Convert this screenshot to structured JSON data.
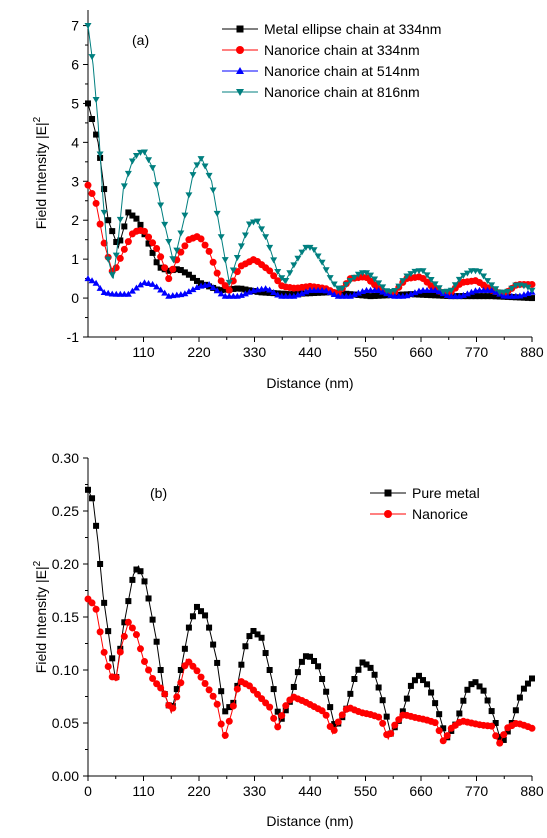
{
  "chart_data": [
    {
      "type": "line",
      "panel_label": "(a)",
      "xlabel": "Distance (nm)",
      "ylabel": "Field Intensity |E|",
      "ylabel_sup": "2",
      "xlim": [
        0,
        880
      ],
      "ylim": [
        -1,
        7.4
      ],
      "x_ticks": [
        110,
        220,
        330,
        440,
        550,
        660,
        770,
        880
      ],
      "y_ticks": [
        -1,
        0,
        1,
        2,
        3,
        4,
        5,
        6,
        7
      ],
      "legend_position": "top-right",
      "series": [
        {
          "name": "Metal ellipse chain at 334nm",
          "color": "#000000",
          "marker": "square",
          "x": [
            0,
            20,
            40,
            60,
            80,
            100,
            120,
            140,
            160,
            180,
            200,
            220,
            260,
            300,
            340,
            400,
            480,
            560,
            640,
            720,
            800,
            880
          ],
          "y": [
            5.0,
            4.0,
            2.0,
            1.3,
            2.2,
            2.0,
            1.4,
            0.8,
            0.7,
            0.75,
            0.6,
            0.4,
            0.2,
            0.25,
            0.15,
            0.1,
            0.15,
            0.05,
            0.1,
            0.05,
            0.05,
            0.0
          ]
        },
        {
          "name": "Nanorice chain at 334nm",
          "color": "#ff0000",
          "marker": "circle",
          "x": [
            0,
            15,
            30,
            50,
            70,
            90,
            110,
            140,
            160,
            180,
            200,
            220,
            240,
            260,
            280,
            300,
            330,
            360,
            385,
            410,
            440,
            470,
            495,
            520,
            550,
            580,
            605,
            630,
            660,
            690,
            715,
            740,
            770,
            800,
            825,
            850,
            880
          ],
          "y": [
            2.9,
            2.5,
            1.5,
            0.6,
            1.2,
            1.7,
            1.75,
            1.2,
            0.5,
            1.1,
            1.5,
            1.6,
            1.2,
            0.5,
            0.2,
            0.8,
            1.0,
            0.7,
            0.3,
            0.25,
            0.3,
            0.25,
            0.1,
            0.5,
            0.55,
            0.2,
            0.1,
            0.5,
            0.55,
            0.2,
            0.1,
            0.4,
            0.45,
            0.2,
            0.1,
            0.35,
            0.35
          ]
        },
        {
          "name": "Nanorice chain at 514nm",
          "color": "#0000ff",
          "marker": "triangle-up",
          "x": [
            0,
            15,
            30,
            50,
            80,
            110,
            130,
            160,
            190,
            220,
            240,
            270,
            300,
            330,
            355,
            380,
            410,
            440,
            470,
            495,
            520,
            550,
            575,
            605,
            630,
            660,
            690,
            715,
            740,
            770,
            800,
            825,
            855,
            880
          ],
          "y": [
            0.5,
            0.4,
            0.15,
            0.1,
            0.1,
            0.4,
            0.35,
            0.05,
            0.1,
            0.3,
            0.35,
            0.05,
            0.05,
            0.2,
            0.25,
            0.05,
            0.05,
            0.2,
            0.2,
            0.05,
            0.05,
            0.2,
            0.2,
            0.05,
            0.05,
            0.2,
            0.2,
            0.05,
            0.05,
            0.2,
            0.2,
            0.05,
            0.05,
            0.15
          ]
        },
        {
          "name": "Nanorice chain at 816nm",
          "color": "#007f7f",
          "marker": "triangle-down",
          "x": [
            0,
            10,
            20,
            30,
            40,
            50,
            60,
            70,
            90,
            110,
            130,
            150,
            170,
            190,
            210,
            225,
            245,
            265,
            280,
            300,
            320,
            335,
            355,
            375,
            390,
            410,
            430,
            445,
            465,
            485,
            500,
            520,
            540,
            555,
            575,
            595,
            610,
            630,
            650,
            665,
            685,
            705,
            720,
            740,
            760,
            775,
            795,
            815,
            830,
            850,
            870,
            880
          ],
          "y": [
            7.0,
            6.0,
            4.5,
            2.5,
            1.0,
            0.5,
            1.5,
            2.8,
            3.6,
            3.8,
            3.3,
            2.0,
            0.9,
            2.0,
            3.3,
            3.6,
            3.0,
            1.5,
            0.4,
            1.2,
            1.9,
            2.0,
            1.5,
            0.7,
            0.4,
            0.9,
            1.3,
            1.3,
            0.9,
            0.4,
            0.2,
            0.45,
            0.65,
            0.65,
            0.4,
            0.15,
            0.2,
            0.55,
            0.7,
            0.7,
            0.4,
            0.15,
            0.2,
            0.55,
            0.7,
            0.7,
            0.4,
            0.15,
            0.15,
            0.35,
            0.3,
            0.2
          ]
        }
      ]
    },
    {
      "type": "line",
      "panel_label": "(b)",
      "xlabel": "Distance (nm)",
      "ylabel": "Field Intensity |E|",
      "ylabel_sup": "2",
      "xlim": [
        0,
        880
      ],
      "ylim": [
        0,
        0.3
      ],
      "x_ticks": [
        0,
        110,
        220,
        330,
        440,
        550,
        660,
        770,
        880
      ],
      "y_ticks": [
        0.0,
        0.05,
        0.1,
        0.15,
        0.2,
        0.25,
        0.3
      ],
      "y_tick_labels": [
        "0.00",
        "0.05",
        "0.10",
        "0.15",
        "0.20",
        "0.25",
        "0.30"
      ],
      "legend_position": "top-right",
      "series": [
        {
          "name": "Pure metal",
          "color": "#000000",
          "marker": "square",
          "x": [
            0,
            10,
            20,
            30,
            45,
            55,
            70,
            90,
            100,
            115,
            135,
            150,
            165,
            180,
            200,
            215,
            235,
            255,
            270,
            290,
            310,
            325,
            345,
            365,
            380,
            400,
            420,
            435,
            455,
            475,
            490,
            510,
            530,
            545,
            565,
            585,
            600,
            620,
            640,
            655,
            675,
            695,
            710,
            730,
            750,
            765,
            785,
            805,
            820,
            840,
            860,
            880
          ],
          "y": [
            0.27,
            0.26,
            0.22,
            0.17,
            0.12,
            0.09,
            0.14,
            0.19,
            0.198,
            0.18,
            0.13,
            0.08,
            0.06,
            0.09,
            0.14,
            0.16,
            0.15,
            0.11,
            0.06,
            0.07,
            0.12,
            0.138,
            0.13,
            0.09,
            0.05,
            0.07,
            0.105,
            0.115,
            0.105,
            0.075,
            0.045,
            0.06,
            0.095,
            0.108,
            0.1,
            0.07,
            0.04,
            0.055,
            0.085,
            0.095,
            0.085,
            0.06,
            0.035,
            0.05,
            0.08,
            0.09,
            0.08,
            0.055,
            0.03,
            0.05,
            0.08,
            0.092
          ]
        },
        {
          "name": "Nanorice",
          "color": "#ff0000",
          "marker": "circle",
          "x": [
            0,
            15,
            30,
            45,
            55,
            65,
            80,
            95,
            110,
            130,
            150,
            165,
            180,
            195,
            215,
            235,
            255,
            270,
            285,
            300,
            320,
            340,
            360,
            375,
            390,
            405,
            430,
            450,
            470,
            485,
            500,
            515,
            540,
            560,
            580,
            595,
            610,
            625,
            650,
            670,
            690,
            705,
            720,
            740,
            760,
            780,
            800,
            815,
            830,
            850,
            870,
            880
          ],
          "y": [
            0.167,
            0.16,
            0.12,
            0.095,
            0.09,
            0.12,
            0.145,
            0.135,
            0.11,
            0.09,
            0.08,
            0.06,
            0.08,
            0.11,
            0.1,
            0.085,
            0.07,
            0.035,
            0.06,
            0.09,
            0.085,
            0.075,
            0.065,
            0.045,
            0.065,
            0.075,
            0.07,
            0.065,
            0.06,
            0.04,
            0.055,
            0.065,
            0.06,
            0.058,
            0.055,
            0.035,
            0.05,
            0.058,
            0.055,
            0.053,
            0.05,
            0.032,
            0.045,
            0.052,
            0.05,
            0.048,
            0.047,
            0.03,
            0.045,
            0.05,
            0.047,
            0.045
          ]
        }
      ]
    }
  ]
}
